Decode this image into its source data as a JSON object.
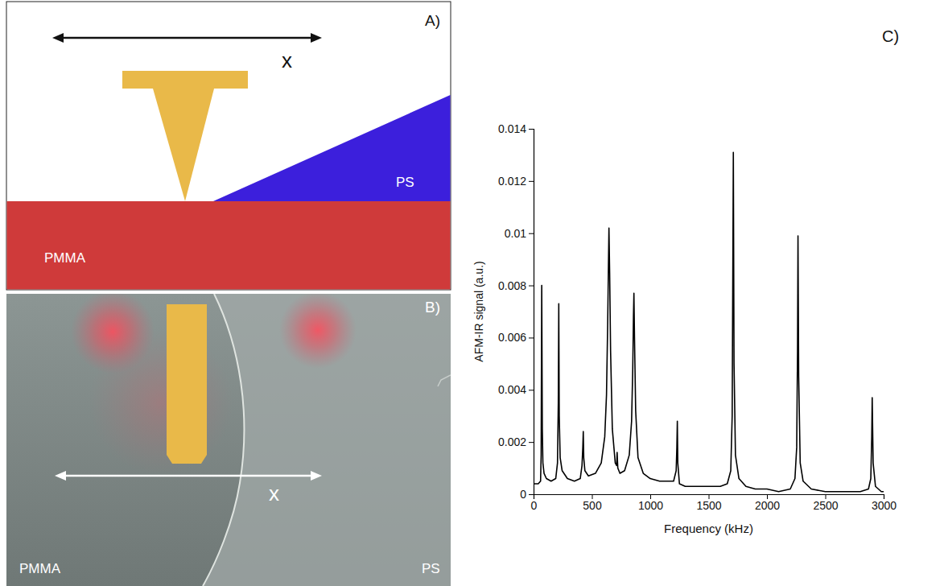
{
  "panel_a": {
    "panel_label": "A)",
    "arrow_label": "x",
    "substrate_label": "PMMA",
    "film_label": "PS"
  },
  "panel_b": {
    "panel_label": "B)",
    "arrow_label": "x",
    "left_label": "PMMA",
    "right_label": "PS"
  },
  "chart_data": {
    "type": "line",
    "panel_label": "C)",
    "x_label": "Frequency (kHz)",
    "y_label": "AFM-IR signal (a.u.)",
    "color": "#000000",
    "xlim": [
      0,
      3000
    ],
    "xticks": [
      0,
      500,
      1000,
      1500,
      2000,
      2500,
      3000
    ],
    "ylim": [
      0,
      0.014
    ],
    "yticks": [
      0,
      0.002,
      0.004,
      0.006,
      0.008,
      0.01,
      0.012,
      0.014
    ],
    "x": [
      0,
      40,
      60,
      65,
      70,
      75,
      80,
      90,
      110,
      150,
      190,
      205,
      212,
      216,
      220,
      228,
      245,
      290,
      350,
      400,
      415,
      422,
      426,
      430,
      440,
      470,
      530,
      580,
      610,
      625,
      635,
      642,
      646,
      652,
      660,
      675,
      700,
      712,
      716,
      722,
      740,
      780,
      820,
      840,
      850,
      856,
      860,
      865,
      875,
      895,
      940,
      1000,
      1080,
      1150,
      1200,
      1222,
      1228,
      1232,
      1236,
      1250,
      1300,
      1400,
      1500,
      1600,
      1660,
      1690,
      1702,
      1708,
      1712,
      1718,
      1730,
      1760,
      1820,
      1900,
      2000,
      2100,
      2200,
      2240,
      2255,
      2262,
      2266,
      2272,
      2285,
      2310,
      2380,
      2500,
      2600,
      2700,
      2800,
      2870,
      2890,
      2898,
      2902,
      2910,
      2930,
      2980,
      3000
    ],
    "values": [
      0.0004,
      0.0004,
      0.0005,
      0.0015,
      0.008,
      0.0025,
      0.0012,
      0.0008,
      0.0006,
      0.0005,
      0.0006,
      0.0012,
      0.0035,
      0.0073,
      0.003,
      0.0014,
      0.0009,
      0.0006,
      0.0005,
      0.0006,
      0.0011,
      0.0018,
      0.0024,
      0.0014,
      0.0009,
      0.0007,
      0.0008,
      0.0012,
      0.0022,
      0.0038,
      0.0065,
      0.0089,
      0.0102,
      0.0085,
      0.0055,
      0.0025,
      0.0012,
      0.0011,
      0.0016,
      0.001,
      0.0008,
      0.0009,
      0.0015,
      0.0028,
      0.0048,
      0.0068,
      0.0077,
      0.006,
      0.0032,
      0.0014,
      0.0008,
      0.0006,
      0.0005,
      0.0005,
      0.0005,
      0.0009,
      0.0018,
      0.0028,
      0.0012,
      0.0004,
      0.0003,
      0.0003,
      0.0003,
      0.0003,
      0.0004,
      0.0009,
      0.003,
      0.009,
      0.0131,
      0.005,
      0.0015,
      0.0006,
      0.0003,
      0.0002,
      0.0002,
      0.0001,
      0.0002,
      0.0006,
      0.0018,
      0.0055,
      0.0099,
      0.0045,
      0.0012,
      0.0005,
      0.0002,
      0.0001,
      0.0001,
      0.0001,
      0.0001,
      0.0002,
      0.0006,
      0.0022,
      0.0037,
      0.0012,
      0.0003,
      0.0001,
      0.0001
    ]
  }
}
